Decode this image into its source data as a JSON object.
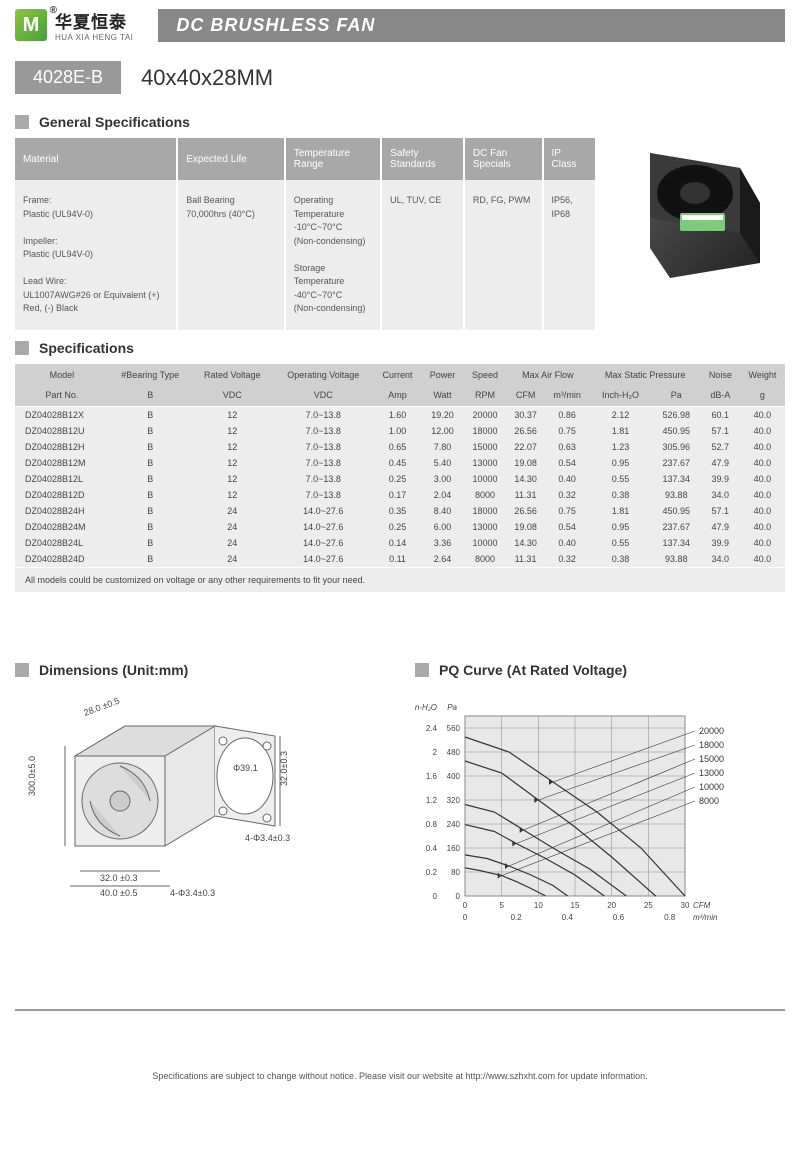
{
  "brand": {
    "logo_letter": "M",
    "name_cn": "华夏恒泰",
    "name_en": "HUA XIA HENG TAI"
  },
  "title": "DC BRUSHLESS FAN",
  "model": "4028E-B",
  "size": "40x40x28MM",
  "sections": {
    "general": "General Specifications",
    "specs": "Specifications",
    "dimensions": "Dimensions (Unit:mm)",
    "pq": "PQ Curve (At Rated Voltage)"
  },
  "gen_spec": {
    "headers": [
      "Material",
      "Expected Life",
      "Temperature Range",
      "Safety Standards",
      "DC Fan Specials",
      "IP Class"
    ],
    "cells": [
      "Frame:\nPlastic (UL94V-0)\n\nImpeller:\nPlastic (UL94V-0)\n\nLead Wire:\nUL1007AWG#26 or Equivalent (+) Red, (-) Black",
      "Ball Bearing 70,000hrs (40°C)",
      "Operating Temperature\n-10°C~70°C\n(Non-condensing)\n\nStorage Temperature\n-40°C~70°C\n(Non-condensing)",
      "UL, TUV, CE",
      "RD, FG, PWM",
      "IP56, IP68"
    ]
  },
  "spec_table": {
    "header1": [
      "Model",
      "#Bearing Type",
      "Rated Voltage",
      "Operating Voltage",
      "Current",
      "Power",
      "Speed",
      "Max Air Flow",
      "",
      "Max Static Pressure",
      "",
      "Noise",
      "Weight"
    ],
    "header2": [
      "Part No.",
      "B",
      "VDC",
      "VDC",
      "Amp",
      "Watt",
      "RPM",
      "CFM",
      "m³/min",
      "Inch-H₂O",
      "Pa",
      "dB-A",
      "g"
    ],
    "rows": [
      [
        "DZ04028B12X",
        "B",
        "12",
        "7.0~13.8",
        "1.60",
        "19.20",
        "20000",
        "30.37",
        "0.86",
        "2.12",
        "526.98",
        "60.1",
        "40.0"
      ],
      [
        "DZ04028B12U",
        "B",
        "12",
        "7.0~13.8",
        "1.00",
        "12.00",
        "18000",
        "26.56",
        "0.75",
        "1.81",
        "450.95",
        "57.1",
        "40.0"
      ],
      [
        "DZ04028B12H",
        "B",
        "12",
        "7.0~13.8",
        "0.65",
        "7.80",
        "15000",
        "22.07",
        "0.63",
        "1.23",
        "305.96",
        "52.7",
        "40.0"
      ],
      [
        "DZ04028B12M",
        "B",
        "12",
        "7.0~13.8",
        "0.45",
        "5.40",
        "13000",
        "19.08",
        "0.54",
        "0.95",
        "237.67",
        "47.9",
        "40.0"
      ],
      [
        "DZ04028B12L",
        "B",
        "12",
        "7.0~13.8",
        "0.25",
        "3.00",
        "10000",
        "14.30",
        "0.40",
        "0.55",
        "137.34",
        "39.9",
        "40.0"
      ],
      [
        "DZ04028B12D",
        "B",
        "12",
        "7.0~13.8",
        "0.17",
        "2.04",
        "8000",
        "11.31",
        "0.32",
        "0.38",
        "93.88",
        "34.0",
        "40.0"
      ],
      [
        "DZ04028B24H",
        "B",
        "24",
        "14.0~27.6",
        "0.35",
        "8.40",
        "18000",
        "26.56",
        "0.75",
        "1.81",
        "450.95",
        "57.1",
        "40.0"
      ],
      [
        "DZ04028B24M",
        "B",
        "24",
        "14.0~27.6",
        "0.25",
        "6.00",
        "13000",
        "19.08",
        "0.54",
        "0.95",
        "237.67",
        "47.9",
        "40.0"
      ],
      [
        "DZ04028B24L",
        "B",
        "24",
        "14.0~27.6",
        "0.14",
        "3.36",
        "10000",
        "14.30",
        "0.40",
        "0.55",
        "137.34",
        "39.9",
        "40.0"
      ],
      [
        "DZ04028B24D",
        "B",
        "24",
        "14.0~27.6",
        "0.11",
        "2.64",
        "8000",
        "11.31",
        "0.32",
        "0.38",
        "93.88",
        "34.0",
        "40.0"
      ]
    ],
    "note": "All models could be customized on voltage or any other requirements to fit your need."
  },
  "dimensions": {
    "labels": [
      "28.0 ±0.5",
      "300.0±5.0",
      "Φ39.1",
      "32.0±0.3",
      "4-Φ3.4±0.3",
      "32.0 ±0.3",
      "4-Φ3.4±0.3",
      "40.0 ±0.5"
    ],
    "line_color": "#666",
    "fill_color": "#d8d8d8"
  },
  "pq_chart": {
    "type": "line",
    "bg_color": "#e8e8e8",
    "grid_color": "#888",
    "line_color": "#333",
    "y1_label": "Pa",
    "y2_label": "In-H₂O",
    "x1_label": "CFM",
    "x2_label": "m³/min",
    "y1_ticks": [
      0,
      80,
      160,
      240,
      320,
      400,
      480,
      560
    ],
    "y2_ticks": [
      0,
      0.2,
      0.4,
      0.8,
      1.2,
      1.6,
      2.0,
      2.4
    ],
    "x1_ticks": [
      0,
      5,
      10,
      15,
      20,
      25,
      30
    ],
    "x2_ticks": [
      0,
      0.2,
      0.4,
      0.6,
      0.8
    ],
    "series_labels": [
      "20000",
      "18000",
      "15000",
      "13000",
      "10000",
      "8000"
    ],
    "curves": [
      [
        [
          0,
          530
        ],
        [
          6,
          480
        ],
        [
          12,
          380
        ],
        [
          18,
          280
        ],
        [
          24,
          160
        ],
        [
          30,
          0
        ]
      ],
      [
        [
          0,
          450
        ],
        [
          5,
          410
        ],
        [
          10,
          320
        ],
        [
          15,
          230
        ],
        [
          20,
          130
        ],
        [
          26,
          0
        ]
      ],
      [
        [
          0,
          305
        ],
        [
          4,
          280
        ],
        [
          8,
          220
        ],
        [
          12,
          160
        ],
        [
          17,
          90
        ],
        [
          22,
          0
        ]
      ],
      [
        [
          0,
          238
        ],
        [
          4,
          215
        ],
        [
          7,
          175
        ],
        [
          11,
          125
        ],
        [
          15,
          70
        ],
        [
          19,
          0
        ]
      ],
      [
        [
          0,
          137
        ],
        [
          3,
          125
        ],
        [
          6,
          100
        ],
        [
          9,
          70
        ],
        [
          12,
          35
        ],
        [
          14,
          0
        ]
      ],
      [
        [
          0,
          94
        ],
        [
          2,
          85
        ],
        [
          5,
          68
        ],
        [
          7,
          48
        ],
        [
          9,
          25
        ],
        [
          11,
          0
        ]
      ]
    ]
  },
  "footer": "Specifications are subject to change without notice. Please visit our website at http://www.szhxht.com for update information."
}
